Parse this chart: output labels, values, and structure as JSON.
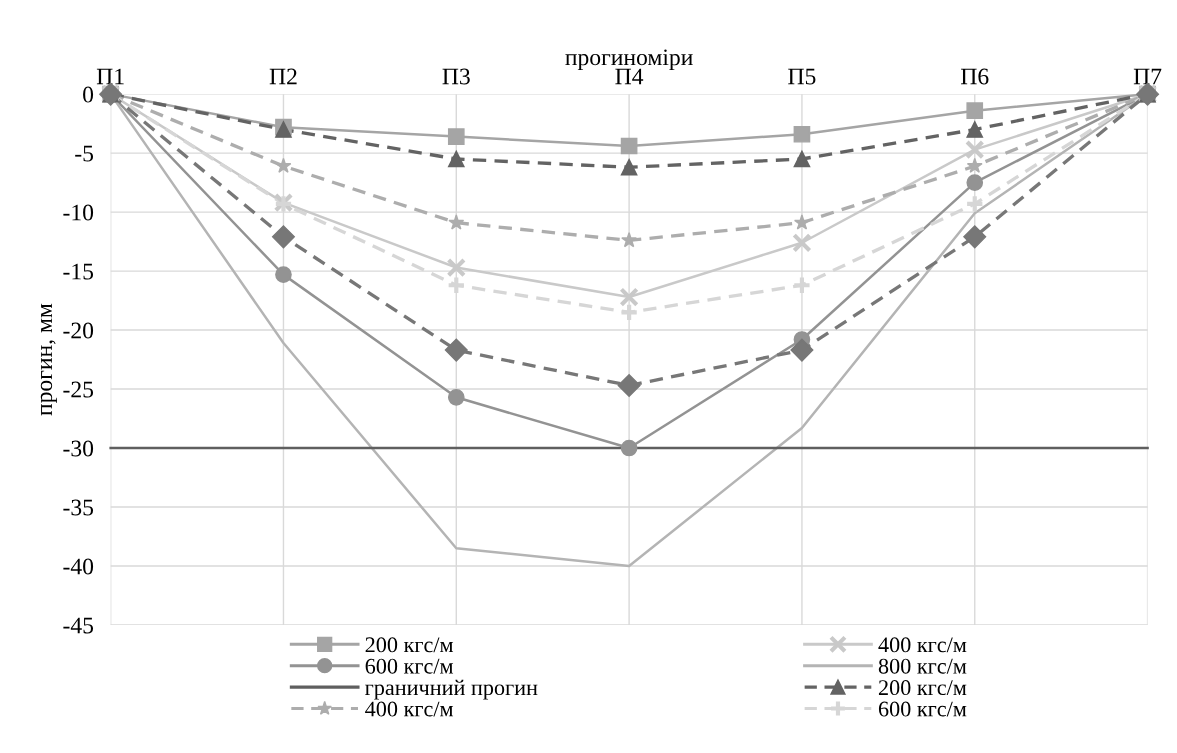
{
  "chart_data": {
    "type": "line",
    "xlabel": "прогиноміри",
    "ylabel": "прогин, мм",
    "categories": [
      "П1",
      "П2",
      "П3",
      "П4",
      "П5",
      "П6",
      "П7"
    ],
    "ylim": [
      -45,
      0
    ],
    "yticks": [
      -45,
      -40,
      -35,
      -30,
      -25,
      -20,
      -15,
      -10,
      -5,
      0
    ],
    "grid": true,
    "legend": "bottom",
    "series": [
      {
        "name": "200 кгс/м",
        "color": "#a5a5a5",
        "marker": "square",
        "line_style": "solid",
        "values": [
          0,
          -2.8,
          -3.6,
          -4.4,
          -3.4,
          -1.4,
          0
        ]
      },
      {
        "name": "400 кгс/м",
        "color": "#c9c9c9",
        "marker": "cross",
        "line_style": "solid",
        "values": [
          0,
          -9.2,
          -14.7,
          -17.2,
          -12.6,
          -4.7,
          0
        ]
      },
      {
        "name": "600 кгс/м",
        "color": "#939393",
        "marker": "circle",
        "line_style": "solid",
        "values": [
          0,
          -15.3,
          -25.7,
          -30,
          -20.8,
          -7.5,
          0
        ]
      },
      {
        "name": "800 кгс/м",
        "color": "#b4b4b4",
        "marker": "none",
        "line_style": "solid",
        "values": [
          0,
          -21.1,
          -38.5,
          -40,
          -28.3,
          -10.1,
          0
        ]
      },
      {
        "name": "граничний прогин",
        "color": "#5f5f5f",
        "marker": "none",
        "line_style": "solid",
        "values": [
          -30,
          -30,
          -30,
          -30,
          -30,
          -30,
          -30
        ]
      },
      {
        "name": "200 кгс/м",
        "color": "#636363",
        "marker": "triangle",
        "line_style": "dashed",
        "values": [
          0,
          -3.0,
          -5.5,
          -6.2,
          -5.5,
          -3.0,
          0
        ]
      },
      {
        "name": "400 кгс/м",
        "color": "#adadad",
        "marker": "star",
        "line_style": "dashed",
        "values": [
          0,
          -6.1,
          -10.9,
          -12.4,
          -10.9,
          -6.1,
          0
        ]
      },
      {
        "name": "600 кгс/м",
        "color": "#d6d6d6",
        "marker": "plus",
        "line_style": "dashed",
        "values": [
          0,
          -9.3,
          -16.2,
          -18.5,
          -16.2,
          -9.3,
          0
        ]
      },
      {
        "color": "#777777",
        "marker": "diamond",
        "line_style": "dashed",
        "values": [
          0,
          -12.1,
          -21.7,
          -24.7,
          -21.7,
          -12.1,
          0
        ]
      }
    ]
  }
}
